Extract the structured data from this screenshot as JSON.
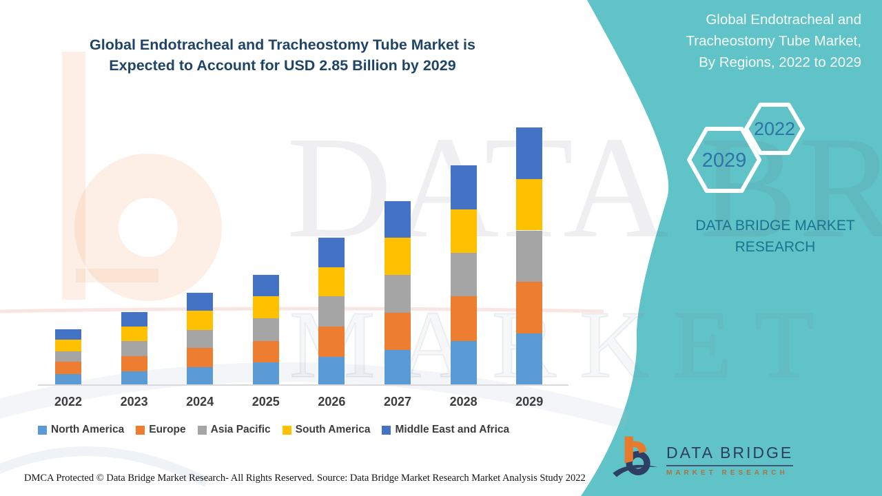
{
  "title": {
    "lines": [
      "Global Endotracheal and Tracheostomy Tube Market is",
      "Expected to Account for USD 2.85 Billion by 2029"
    ],
    "color": "#1F4468"
  },
  "side_panel": {
    "heading_lines": [
      "Global Endotracheal and",
      "Tracheostomy Tube Market,",
      "By Regions, 2022 to 2029"
    ],
    "hexagons": {
      "back_year": "2029",
      "front_year": "2022"
    },
    "brand_lines": [
      "DATA BRIDGE MARKET",
      "RESEARCH"
    ],
    "background_color": "#5FC3C7",
    "year_text_color": "#2E74A5",
    "brand_text_color": "#1B7390"
  },
  "logo": {
    "name_line": "DATA BRIDGE",
    "sub_line": "MARKET RESEARCH"
  },
  "watermark": {
    "letter": "b",
    "line1": "DATA BRIDGE",
    "line2": "MARKET RESEARCH"
  },
  "footer": {
    "dmca": "DMCA Protected © Data Bridge Market Research- All Rights Reserved.",
    "source": "Source: Data Bridge Market Research Market Analysis Study 2022"
  },
  "chart_data": {
    "type": "bar",
    "stacked": true,
    "title": "Global Endotracheal and Tracheostomy Tube Market, By Regions, 2022 to 2029",
    "unit": "USD Billion",
    "categories": [
      "2022",
      "2023",
      "2024",
      "2025",
      "2026",
      "2027",
      "2028",
      "2029"
    ],
    "series": [
      {
        "name": "North America",
        "color": "#5B9BD5",
        "values": [
          0.12,
          0.15,
          0.2,
          0.25,
          0.31,
          0.39,
          0.49,
          0.57
        ]
      },
      {
        "name": "Europe",
        "color": "#ED7D31",
        "values": [
          0.14,
          0.17,
          0.21,
          0.24,
          0.34,
          0.41,
          0.49,
          0.57
        ]
      },
      {
        "name": "Asia Pacific",
        "color": "#A5A5A5",
        "values": [
          0.11,
          0.17,
          0.2,
          0.25,
          0.33,
          0.42,
          0.48,
          0.57
        ]
      },
      {
        "name": "South America",
        "color": "#FFC000",
        "values": [
          0.13,
          0.16,
          0.21,
          0.24,
          0.32,
          0.41,
          0.48,
          0.57
        ]
      },
      {
        "name": "Middle East and Africa",
        "color": "#4472C4",
        "values": [
          0.12,
          0.16,
          0.2,
          0.24,
          0.33,
          0.4,
          0.49,
          0.57
        ]
      }
    ],
    "totals_estimated_usd_billion": [
      0.62,
      0.81,
      1.02,
      1.22,
      1.63,
      2.03,
      2.43,
      2.85
    ],
    "annotation": "USD 2.85 Billion by 2029",
    "ylim": [
      0,
      3
    ],
    "y_axis_visible": false,
    "gridlines": false,
    "legend_position": "bottom"
  }
}
